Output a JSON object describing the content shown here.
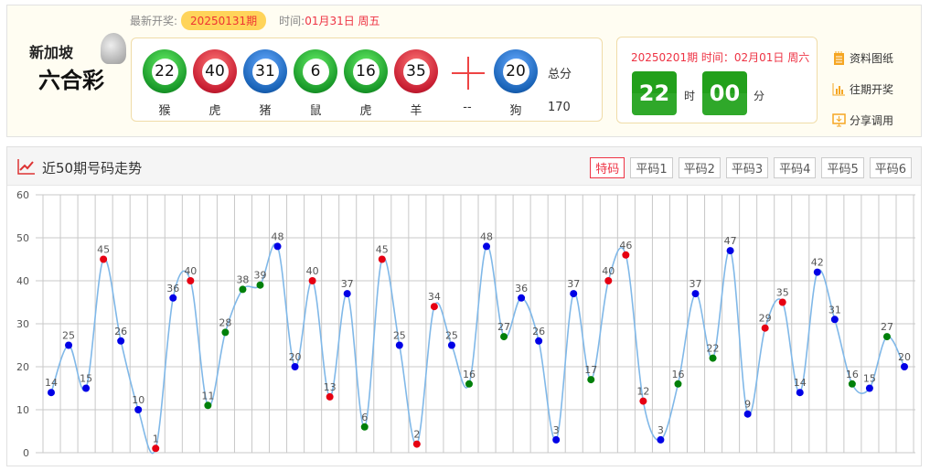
{
  "logo": {
    "line1": "新加坡",
    "line2": "六合彩"
  },
  "latest": {
    "label": "最新开奖:",
    "issue": "20250131期",
    "time_label": "时间:",
    "time": "01月31日 周五"
  },
  "balls": [
    {
      "num": "22",
      "zodiac": "猴",
      "color": "green"
    },
    {
      "num": "40",
      "zodiac": "虎",
      "color": "red"
    },
    {
      "num": "31",
      "zodiac": "猪",
      "color": "blue"
    },
    {
      "num": "6",
      "zodiac": "鼠",
      "color": "green"
    },
    {
      "num": "16",
      "zodiac": "虎",
      "color": "green"
    },
    {
      "num": "35",
      "zodiac": "羊",
      "color": "red"
    }
  ],
  "special": {
    "num": "20",
    "zodiac": "狗",
    "color": "blue",
    "placeholder": "--"
  },
  "sum": {
    "label": "总分",
    "value": "170"
  },
  "next": {
    "title": "20250201期 时间：02月01日 周六",
    "hour": "22",
    "hour_unit": "时",
    "minute": "00",
    "minute_unit": "分"
  },
  "links": [
    {
      "label": "资料图纸",
      "icon": "notepad-icon"
    },
    {
      "label": "往期开奖",
      "icon": "bar-chart-icon"
    },
    {
      "label": "分享调用",
      "icon": "monitor-download-icon"
    }
  ],
  "panel": {
    "title": "近50期号码走势",
    "tabs": [
      "特码",
      "平码1",
      "平码2",
      "平码3",
      "平码4",
      "平码5",
      "平码6"
    ],
    "active_tab": 0
  },
  "colors": {
    "red": "#e60012",
    "blue": "#0000e6",
    "green": "#00800a",
    "line": "#80b8e8"
  },
  "chart_data": {
    "type": "line",
    "ylim": [
      0,
      60
    ],
    "yticks": [
      0,
      10,
      20,
      30,
      40,
      50,
      60
    ],
    "grid": true,
    "values": [
      14,
      25,
      15,
      45,
      26,
      10,
      1,
      36,
      40,
      11,
      28,
      38,
      39,
      48,
      20,
      40,
      13,
      37,
      6,
      45,
      25,
      2,
      34,
      25,
      16,
      48,
      27,
      36,
      26,
      3,
      37,
      17,
      40,
      46,
      12,
      3,
      16,
      37,
      22,
      47,
      9,
      29,
      35,
      14,
      42,
      31,
      16,
      15,
      27,
      20
    ],
    "point_colors": [
      "blue",
      "blue",
      "blue",
      "red",
      "blue",
      "blue",
      "red",
      "blue",
      "red",
      "green",
      "green",
      "green",
      "green",
      "blue",
      "blue",
      "red",
      "red",
      "blue",
      "green",
      "red",
      "blue",
      "red",
      "red",
      "blue",
      "green",
      "blue",
      "green",
      "blue",
      "blue",
      "blue",
      "blue",
      "green",
      "red",
      "red",
      "red",
      "blue",
      "green",
      "blue",
      "green",
      "blue",
      "blue",
      "red",
      "red",
      "blue",
      "blue",
      "blue",
      "green",
      "blue",
      "green",
      "blue"
    ]
  }
}
